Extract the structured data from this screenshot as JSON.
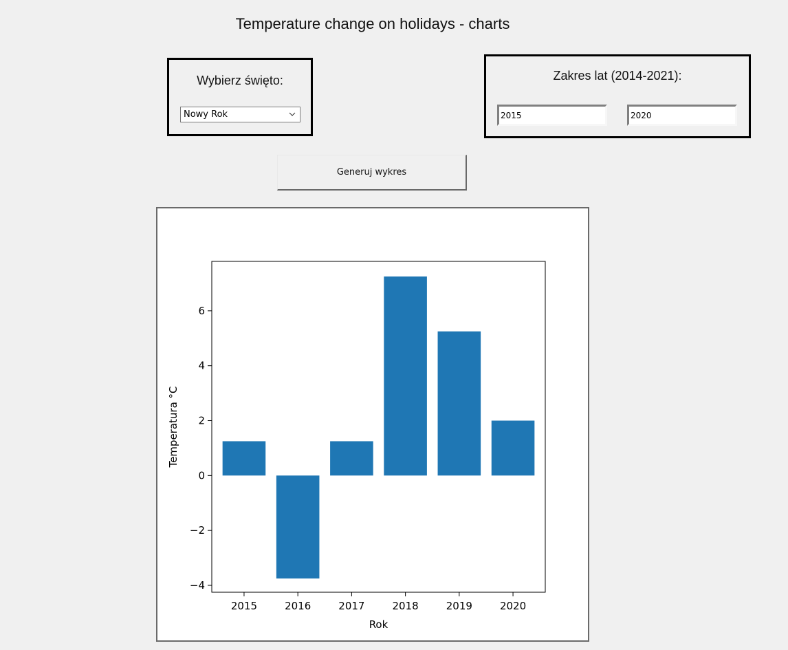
{
  "title": "Temperature change on holidays - charts",
  "holiday": {
    "label": "Wybierz święto:",
    "selected": "Nowy Rok"
  },
  "years": {
    "label": "Zakres lat (2014-2021):",
    "from": "2015",
    "to": "2020"
  },
  "generate_label": "Generuj wykres",
  "chart_data": {
    "type": "bar",
    "categories": [
      "2015",
      "2016",
      "2017",
      "2018",
      "2019",
      "2020"
    ],
    "values": [
      1.25,
      -3.75,
      1.25,
      7.25,
      5.25,
      2.0
    ],
    "xlabel": "Rok",
    "ylabel": "Temperatura °C",
    "yticks": [
      -4,
      -2,
      0,
      2,
      4,
      6
    ],
    "ylim": [
      -4.25,
      7.8
    ],
    "bar_color": "#1f77b4",
    "grid": false
  }
}
